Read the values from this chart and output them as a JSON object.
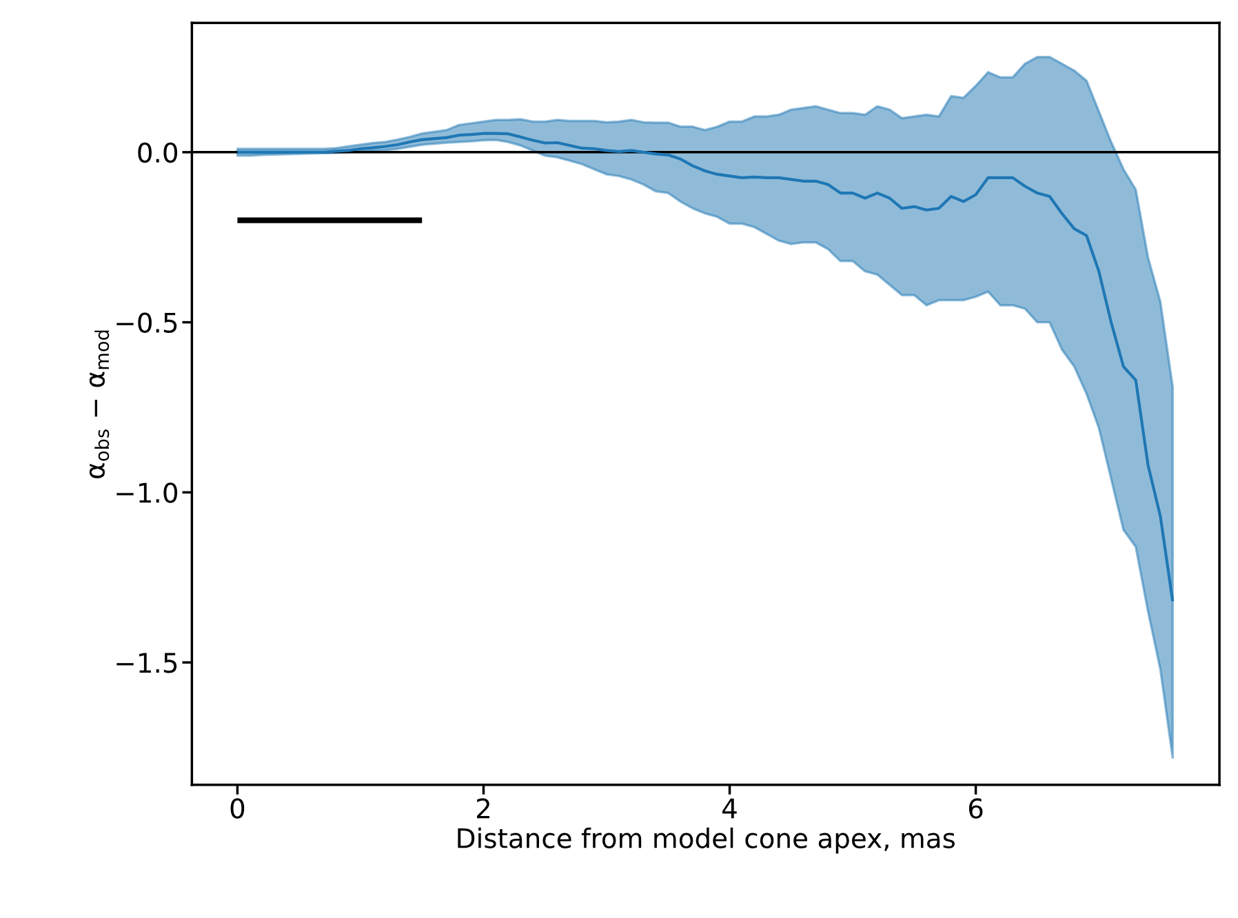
{
  "chart_data": {
    "type": "line",
    "xlabel": "Distance from model cone apex, mas",
    "ylabel": "α$_{obs}$ − α$_{mod}$",
    "xlim": [
      -0.37,
      7.98
    ],
    "ylim": [
      -1.86,
      0.38
    ],
    "xticks": [
      0,
      2,
      4,
      6
    ],
    "yticks": [
      {
        "value": 0.0,
        "label": "0.0"
      },
      {
        "value": -0.5,
        "label": "−0.5"
      },
      {
        "value": -1.0,
        "label": "−1.0"
      },
      {
        "value": -1.5,
        "label": "−1.5"
      }
    ],
    "grid": false,
    "ref_lines": [
      {
        "axis": "y",
        "value": 0,
        "color": "#000000"
      }
    ],
    "series": [
      {
        "color": "#1f77b4",
        "x": [
          0,
          0.1,
          0.2,
          0.3,
          0.4,
          0.5,
          0.6,
          0.7,
          0.8,
          0.9,
          1.0,
          1.1,
          1.2,
          1.3,
          1.4,
          1.5,
          1.6,
          1.7,
          1.8,
          1.9,
          2.0,
          2.1,
          2.2,
          2.3,
          2.4,
          2.5,
          2.6,
          2.7,
          2.8,
          2.9,
          3.0,
          3.1,
          3.2,
          3.3,
          3.4,
          3.5,
          3.6,
          3.7,
          3.8,
          3.9,
          4.0,
          4.1,
          4.2,
          4.3,
          4.4,
          4.5,
          4.6,
          4.7,
          4.8,
          4.9,
          5.0,
          5.1,
          5.2,
          5.3,
          5.4,
          5.5,
          5.6,
          5.7,
          5.8,
          5.9,
          6.0,
          6.1,
          6.2,
          6.3,
          6.4,
          6.5,
          6.6,
          6.7,
          6.8,
          6.9,
          7.0,
          7.1,
          7.2,
          7.3,
          7.4,
          7.5,
          7.6
        ],
        "values": [
          0,
          0,
          0,
          0,
          0,
          0,
          0,
          0,
          0.003,
          0.005,
          0.01,
          0.013,
          0.017,
          0.022,
          0.03,
          0.037,
          0.04,
          0.043,
          0.05,
          0.052,
          0.055,
          0.055,
          0.054,
          0.045,
          0.035,
          0.027,
          0.028,
          0.02,
          0.012,
          0.01,
          0.005,
          0.002,
          0.005,
          0,
          -0.005,
          -0.008,
          -0.02,
          -0.04,
          -0.055,
          -0.065,
          -0.07,
          -0.075,
          -0.073,
          -0.075,
          -0.075,
          -0.08,
          -0.085,
          -0.085,
          -0.095,
          -0.12,
          -0.12,
          -0.135,
          -0.12,
          -0.135,
          -0.165,
          -0.16,
          -0.17,
          -0.165,
          -0.13,
          -0.145,
          -0.125,
          -0.075,
          -0.075,
          -0.075,
          -0.1,
          -0.12,
          -0.13,
          -0.18,
          -0.225,
          -0.245,
          -0.35,
          -0.5,
          -0.63,
          -0.67,
          -0.92,
          -1.07,
          -1.32
        ],
        "lower": [
          -0.01,
          -0.01,
          -0.008,
          -0.007,
          -0.006,
          -0.005,
          -0.004,
          -0.003,
          -0.002,
          0,
          0.002,
          0.004,
          0.006,
          0.01,
          0.016,
          0.022,
          0.025,
          0.028,
          0.03,
          0.032,
          0.035,
          0.036,
          0.03,
          0.02,
          0.005,
          -0.01,
          -0.015,
          -0.025,
          -0.035,
          -0.05,
          -0.065,
          -0.07,
          -0.08,
          -0.095,
          -0.115,
          -0.12,
          -0.145,
          -0.165,
          -0.18,
          -0.19,
          -0.21,
          -0.21,
          -0.22,
          -0.24,
          -0.26,
          -0.27,
          -0.265,
          -0.265,
          -0.285,
          -0.32,
          -0.32,
          -0.35,
          -0.36,
          -0.39,
          -0.42,
          -0.42,
          -0.45,
          -0.435,
          -0.435,
          -0.435,
          -0.425,
          -0.41,
          -0.45,
          -0.45,
          -0.46,
          -0.5,
          -0.5,
          -0.58,
          -0.63,
          -0.71,
          -0.81,
          -0.96,
          -1.11,
          -1.16,
          -1.35,
          -1.52,
          -1.78
        ],
        "upper": [
          0.01,
          0.01,
          0.01,
          0.01,
          0.01,
          0.01,
          0.01,
          0.01,
          0.012,
          0.017,
          0.022,
          0.027,
          0.03,
          0.037,
          0.045,
          0.055,
          0.06,
          0.065,
          0.08,
          0.085,
          0.09,
          0.095,
          0.095,
          0.097,
          0.09,
          0.09,
          0.095,
          0.092,
          0.092,
          0.092,
          0.088,
          0.09,
          0.095,
          0.088,
          0.087,
          0.087,
          0.075,
          0.075,
          0.065,
          0.075,
          0.09,
          0.09,
          0.105,
          0.105,
          0.11,
          0.125,
          0.13,
          0.135,
          0.125,
          0.115,
          0.115,
          0.11,
          0.135,
          0.125,
          0.1,
          0.105,
          0.11,
          0.105,
          0.165,
          0.16,
          0.195,
          0.235,
          0.22,
          0.22,
          0.26,
          0.28,
          0.28,
          0.26,
          0.24,
          0.21,
          0.12,
          0.03,
          -0.05,
          -0.11,
          -0.31,
          -0.44,
          -0.69
        ]
      },
      {
        "color": "#000000",
        "x": [
          0,
          1.5
        ],
        "values": [
          -0.2,
          -0.2
        ]
      }
    ]
  }
}
